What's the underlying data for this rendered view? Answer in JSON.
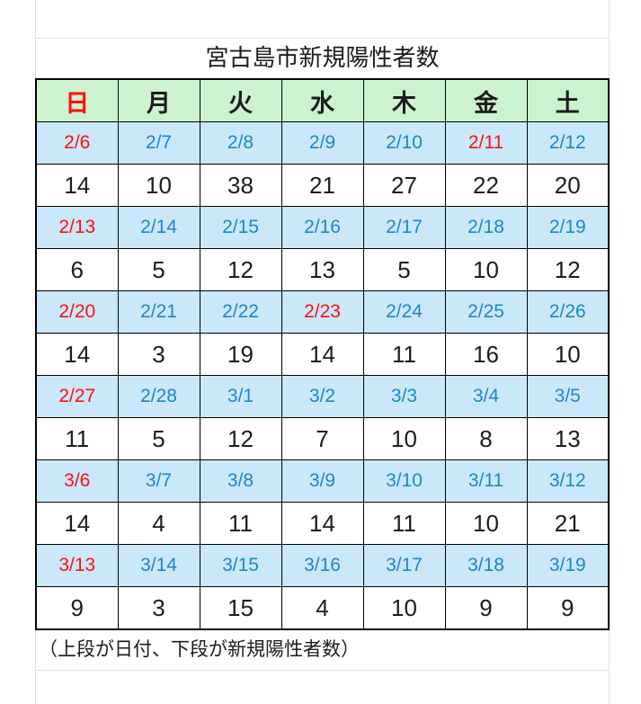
{
  "title": "宮古島市新規陽性者数",
  "footer_note": "（上段が日付、下段が新規陽性者数）",
  "colors": {
    "header_bg": "#cdf3ce",
    "date_bg": "#cbe8fb",
    "date_blue": "#1b87c8",
    "holiday_red": "#ff0f0f",
    "ink": "#1c1c1c",
    "border": "#000000",
    "grid_faint": "#e0e0e0"
  },
  "calendar": {
    "weekday_headers": [
      {
        "label": "日",
        "red": true
      },
      {
        "label": "月",
        "red": false
      },
      {
        "label": "火",
        "red": false
      },
      {
        "label": "水",
        "red": false
      },
      {
        "label": "木",
        "red": false
      },
      {
        "label": "金",
        "red": false
      },
      {
        "label": "土",
        "red": false
      }
    ],
    "weeks": [
      {
        "dates": [
          {
            "label": "2/6",
            "red": true
          },
          {
            "label": "2/7",
            "red": false
          },
          {
            "label": "2/8",
            "red": false
          },
          {
            "label": "2/9",
            "red": false
          },
          {
            "label": "2/10",
            "red": false
          },
          {
            "label": "2/11",
            "red": true
          },
          {
            "label": "2/12",
            "red": false
          }
        ],
        "counts": [
          "14",
          "10",
          "38",
          "21",
          "27",
          "22",
          "20"
        ]
      },
      {
        "dates": [
          {
            "label": "2/13",
            "red": true
          },
          {
            "label": "2/14",
            "red": false
          },
          {
            "label": "2/15",
            "red": false
          },
          {
            "label": "2/16",
            "red": false
          },
          {
            "label": "2/17",
            "red": false
          },
          {
            "label": "2/18",
            "red": false
          },
          {
            "label": "2/19",
            "red": false
          }
        ],
        "counts": [
          "6",
          "5",
          "12",
          "13",
          "5",
          "10",
          "12"
        ]
      },
      {
        "dates": [
          {
            "label": "2/20",
            "red": true
          },
          {
            "label": "2/21",
            "red": false
          },
          {
            "label": "2/22",
            "red": false
          },
          {
            "label": "2/23",
            "red": true
          },
          {
            "label": "2/24",
            "red": false
          },
          {
            "label": "2/25",
            "red": false
          },
          {
            "label": "2/26",
            "red": false
          }
        ],
        "counts": [
          "14",
          "3",
          "19",
          "14",
          "11",
          "16",
          "10"
        ]
      },
      {
        "dates": [
          {
            "label": "2/27",
            "red": true
          },
          {
            "label": "2/28",
            "red": false
          },
          {
            "label": "3/1",
            "red": false
          },
          {
            "label": "3/2",
            "red": false
          },
          {
            "label": "3/3",
            "red": false
          },
          {
            "label": "3/4",
            "red": false
          },
          {
            "label": "3/5",
            "red": false
          }
        ],
        "counts": [
          "11",
          "5",
          "12",
          "7",
          "10",
          "8",
          "13"
        ]
      },
      {
        "dates": [
          {
            "label": "3/6",
            "red": true
          },
          {
            "label": "3/7",
            "red": false
          },
          {
            "label": "3/8",
            "red": false
          },
          {
            "label": "3/9",
            "red": false
          },
          {
            "label": "3/10",
            "red": false
          },
          {
            "label": "3/11",
            "red": false
          },
          {
            "label": "3/12",
            "red": false
          }
        ],
        "counts": [
          "14",
          "4",
          "11",
          "14",
          "11",
          "10",
          "21"
        ]
      },
      {
        "dates": [
          {
            "label": "3/13",
            "red": true
          },
          {
            "label": "3/14",
            "red": false
          },
          {
            "label": "3/15",
            "red": false
          },
          {
            "label": "3/16",
            "red": false
          },
          {
            "label": "3/17",
            "red": false
          },
          {
            "label": "3/18",
            "red": false
          },
          {
            "label": "3/19",
            "red": false
          }
        ],
        "counts": [
          "9",
          "3",
          "15",
          "4",
          "10",
          "9",
          "9"
        ]
      }
    ]
  }
}
